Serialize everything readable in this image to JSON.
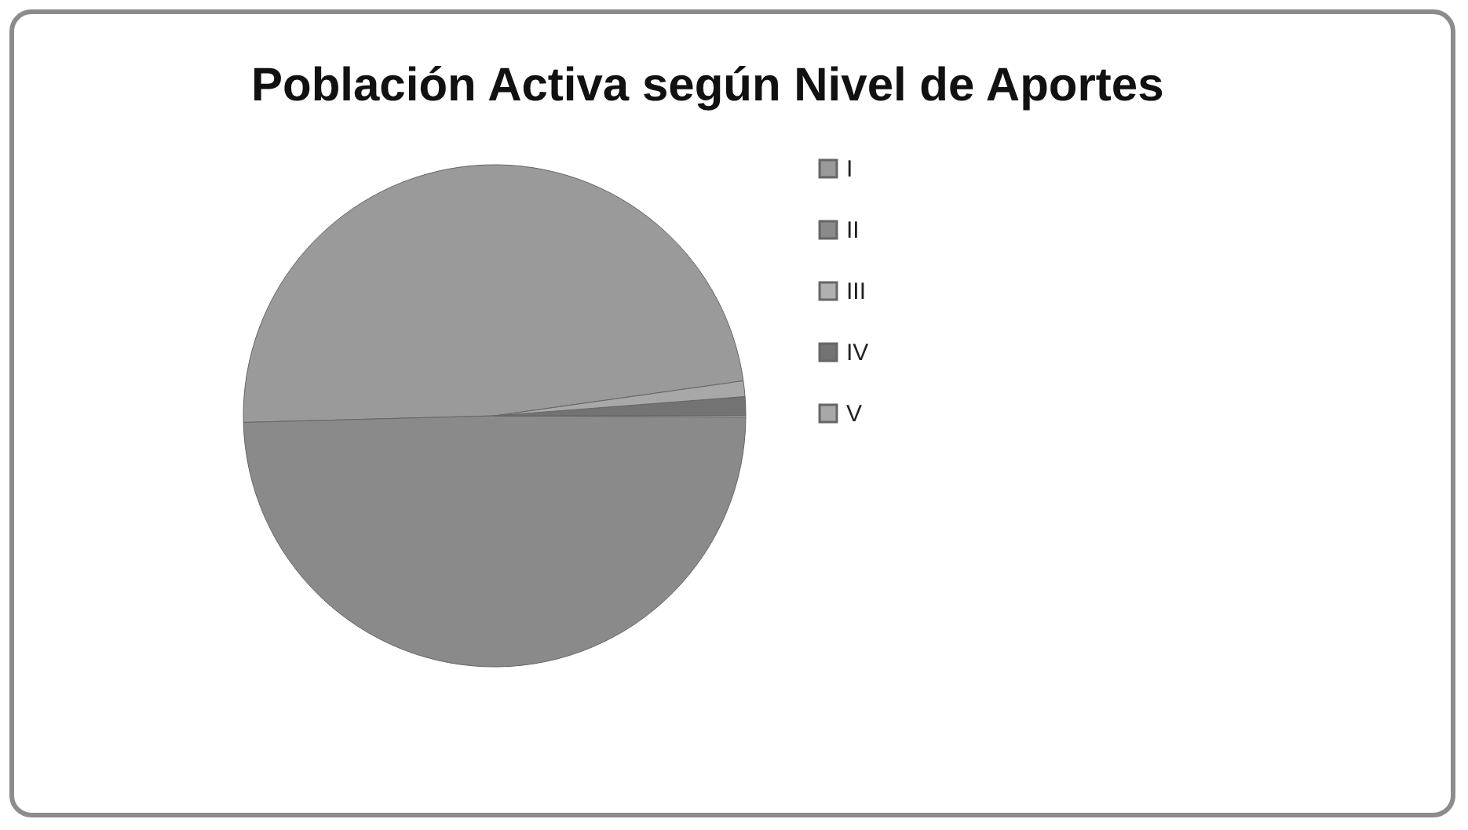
{
  "chart_data": {
    "type": "pie",
    "title": "Población Activa según Nivel de Aportes",
    "categories": [
      "I",
      "II",
      "III",
      "IV",
      "V"
    ],
    "values": [
      48.2,
      49.5,
      0.1,
      1.2,
      1.0
    ],
    "colors": [
      "#9a9a9a",
      "#8a8a8a",
      "#b0b0b0",
      "#737373",
      "#a8a8a8"
    ],
    "legend": "right"
  }
}
